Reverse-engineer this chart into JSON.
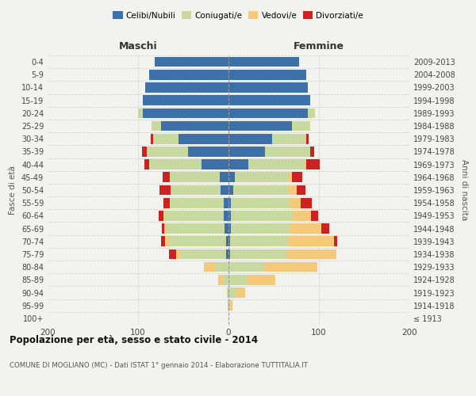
{
  "age_groups": [
    "100+",
    "95-99",
    "90-94",
    "85-89",
    "80-84",
    "75-79",
    "70-74",
    "65-69",
    "60-64",
    "55-59",
    "50-54",
    "45-49",
    "40-44",
    "35-39",
    "30-34",
    "25-29",
    "20-24",
    "15-19",
    "10-14",
    "5-9",
    "0-4"
  ],
  "birth_years": [
    "≤ 1913",
    "1914-1918",
    "1919-1923",
    "1924-1928",
    "1929-1933",
    "1934-1938",
    "1939-1943",
    "1944-1948",
    "1949-1953",
    "1954-1958",
    "1959-1963",
    "1964-1968",
    "1969-1973",
    "1974-1978",
    "1979-1983",
    "1984-1988",
    "1989-1993",
    "1994-1998",
    "1999-2003",
    "2004-2008",
    "2009-2013"
  ],
  "males_celibi": [
    0,
    0,
    0,
    0,
    0,
    3,
    3,
    4,
    5,
    5,
    9,
    10,
    30,
    45,
    55,
    75,
    95,
    95,
    92,
    88,
    82
  ],
  "males_coniugati": [
    0,
    1,
    2,
    6,
    15,
    50,
    62,
    65,
    65,
    60,
    55,
    55,
    58,
    45,
    28,
    10,
    5,
    0,
    0,
    0,
    0
  ],
  "males_vedovi": [
    0,
    0,
    0,
    5,
    12,
    5,
    5,
    2,
    2,
    0,
    0,
    0,
    0,
    0,
    0,
    0,
    0,
    0,
    0,
    0,
    0
  ],
  "males_divorziati": [
    0,
    0,
    0,
    0,
    0,
    8,
    5,
    3,
    5,
    7,
    12,
    8,
    5,
    6,
    3,
    0,
    0,
    0,
    0,
    0,
    0
  ],
  "females_nubili": [
    0,
    0,
    0,
    0,
    0,
    2,
    2,
    3,
    3,
    3,
    5,
    7,
    22,
    40,
    48,
    70,
    88,
    90,
    88,
    86,
    78
  ],
  "females_coniugate": [
    0,
    2,
    8,
    20,
    40,
    62,
    65,
    65,
    68,
    65,
    62,
    60,
    62,
    50,
    38,
    20,
    8,
    0,
    0,
    0,
    0
  ],
  "females_vedove": [
    0,
    2,
    10,
    32,
    58,
    55,
    50,
    35,
    20,
    12,
    8,
    3,
    2,
    0,
    0,
    0,
    0,
    0,
    0,
    0,
    0
  ],
  "females_divorziate": [
    0,
    0,
    0,
    0,
    0,
    0,
    3,
    8,
    8,
    12,
    10,
    12,
    15,
    5,
    3,
    0,
    0,
    0,
    0,
    0,
    0
  ],
  "color_celibi": "#3d6fa8",
  "color_coniugati": "#c8d9a0",
  "color_vedovi": "#f5c97a",
  "color_divorziati": "#cc2222",
  "title": "Popolazione per età, sesso e stato civile - 2014",
  "subtitle": "COMUNE DI MOGLIANO (MC) - Dati ISTAT 1° gennaio 2014 - Elaborazione TUTTITALIA.IT",
  "label_maschi": "Maschi",
  "label_femmine": "Femmine",
  "ylabel_left": "Fasce di età",
  "ylabel_right": "Anni di nascita",
  "legend_labels": [
    "Celibi/Nubili",
    "Coniugati/e",
    "Vedovi/e",
    "Divorziati/e"
  ],
  "xlim": 200,
  "bg_color": "#f2f2ee"
}
